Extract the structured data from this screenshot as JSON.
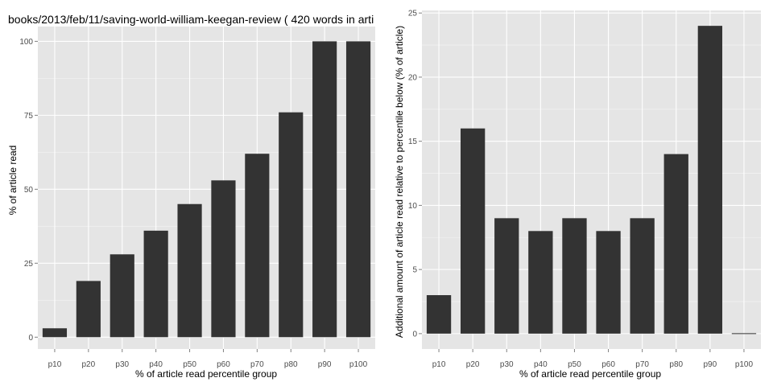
{
  "colors": {
    "panel_background": "#e5e5e5",
    "grid_major": "#ffffff",
    "grid_minor": "#f2f2f2",
    "bar_fill": "#333333",
    "tick_text": "#4d4d4d",
    "tick_mark": "#7f7f7f"
  },
  "chart_data": [
    {
      "type": "bar",
      "title": "books/2013/feb/11/saving-world-william-keegan-review ( 420 words in arti",
      "xlabel": "% of article read percentile group",
      "ylabel": "% of article read",
      "categories": [
        "p10",
        "p20",
        "p30",
        "p40",
        "p50",
        "p60",
        "p70",
        "p80",
        "p90",
        "p100"
      ],
      "values": [
        3,
        19,
        28,
        36,
        45,
        53,
        62,
        76,
        100,
        100
      ],
      "ylim": [
        -4,
        105
      ],
      "yticks": [
        0,
        25,
        50,
        75,
        100
      ],
      "ytick_labels": [
        "0",
        "25",
        "50",
        "75",
        "100"
      ],
      "grid": true
    },
    {
      "type": "bar",
      "title": "",
      "xlabel": "% of article read percentile group",
      "ylabel": "Additional amount of article read relative to percentile below (% of article)",
      "categories": [
        "p10",
        "p20",
        "p30",
        "p40",
        "p50",
        "p60",
        "p70",
        "p80",
        "p90",
        "p100"
      ],
      "values": [
        3,
        16,
        9,
        8,
        9,
        8,
        9,
        14,
        24,
        0
      ],
      "ylim": [
        -1.2,
        25.2
      ],
      "yticks": [
        0,
        5,
        10,
        15,
        20,
        25
      ],
      "ytick_labels": [
        "0",
        "5",
        "10",
        "15",
        "20",
        "25"
      ],
      "grid": true
    }
  ]
}
